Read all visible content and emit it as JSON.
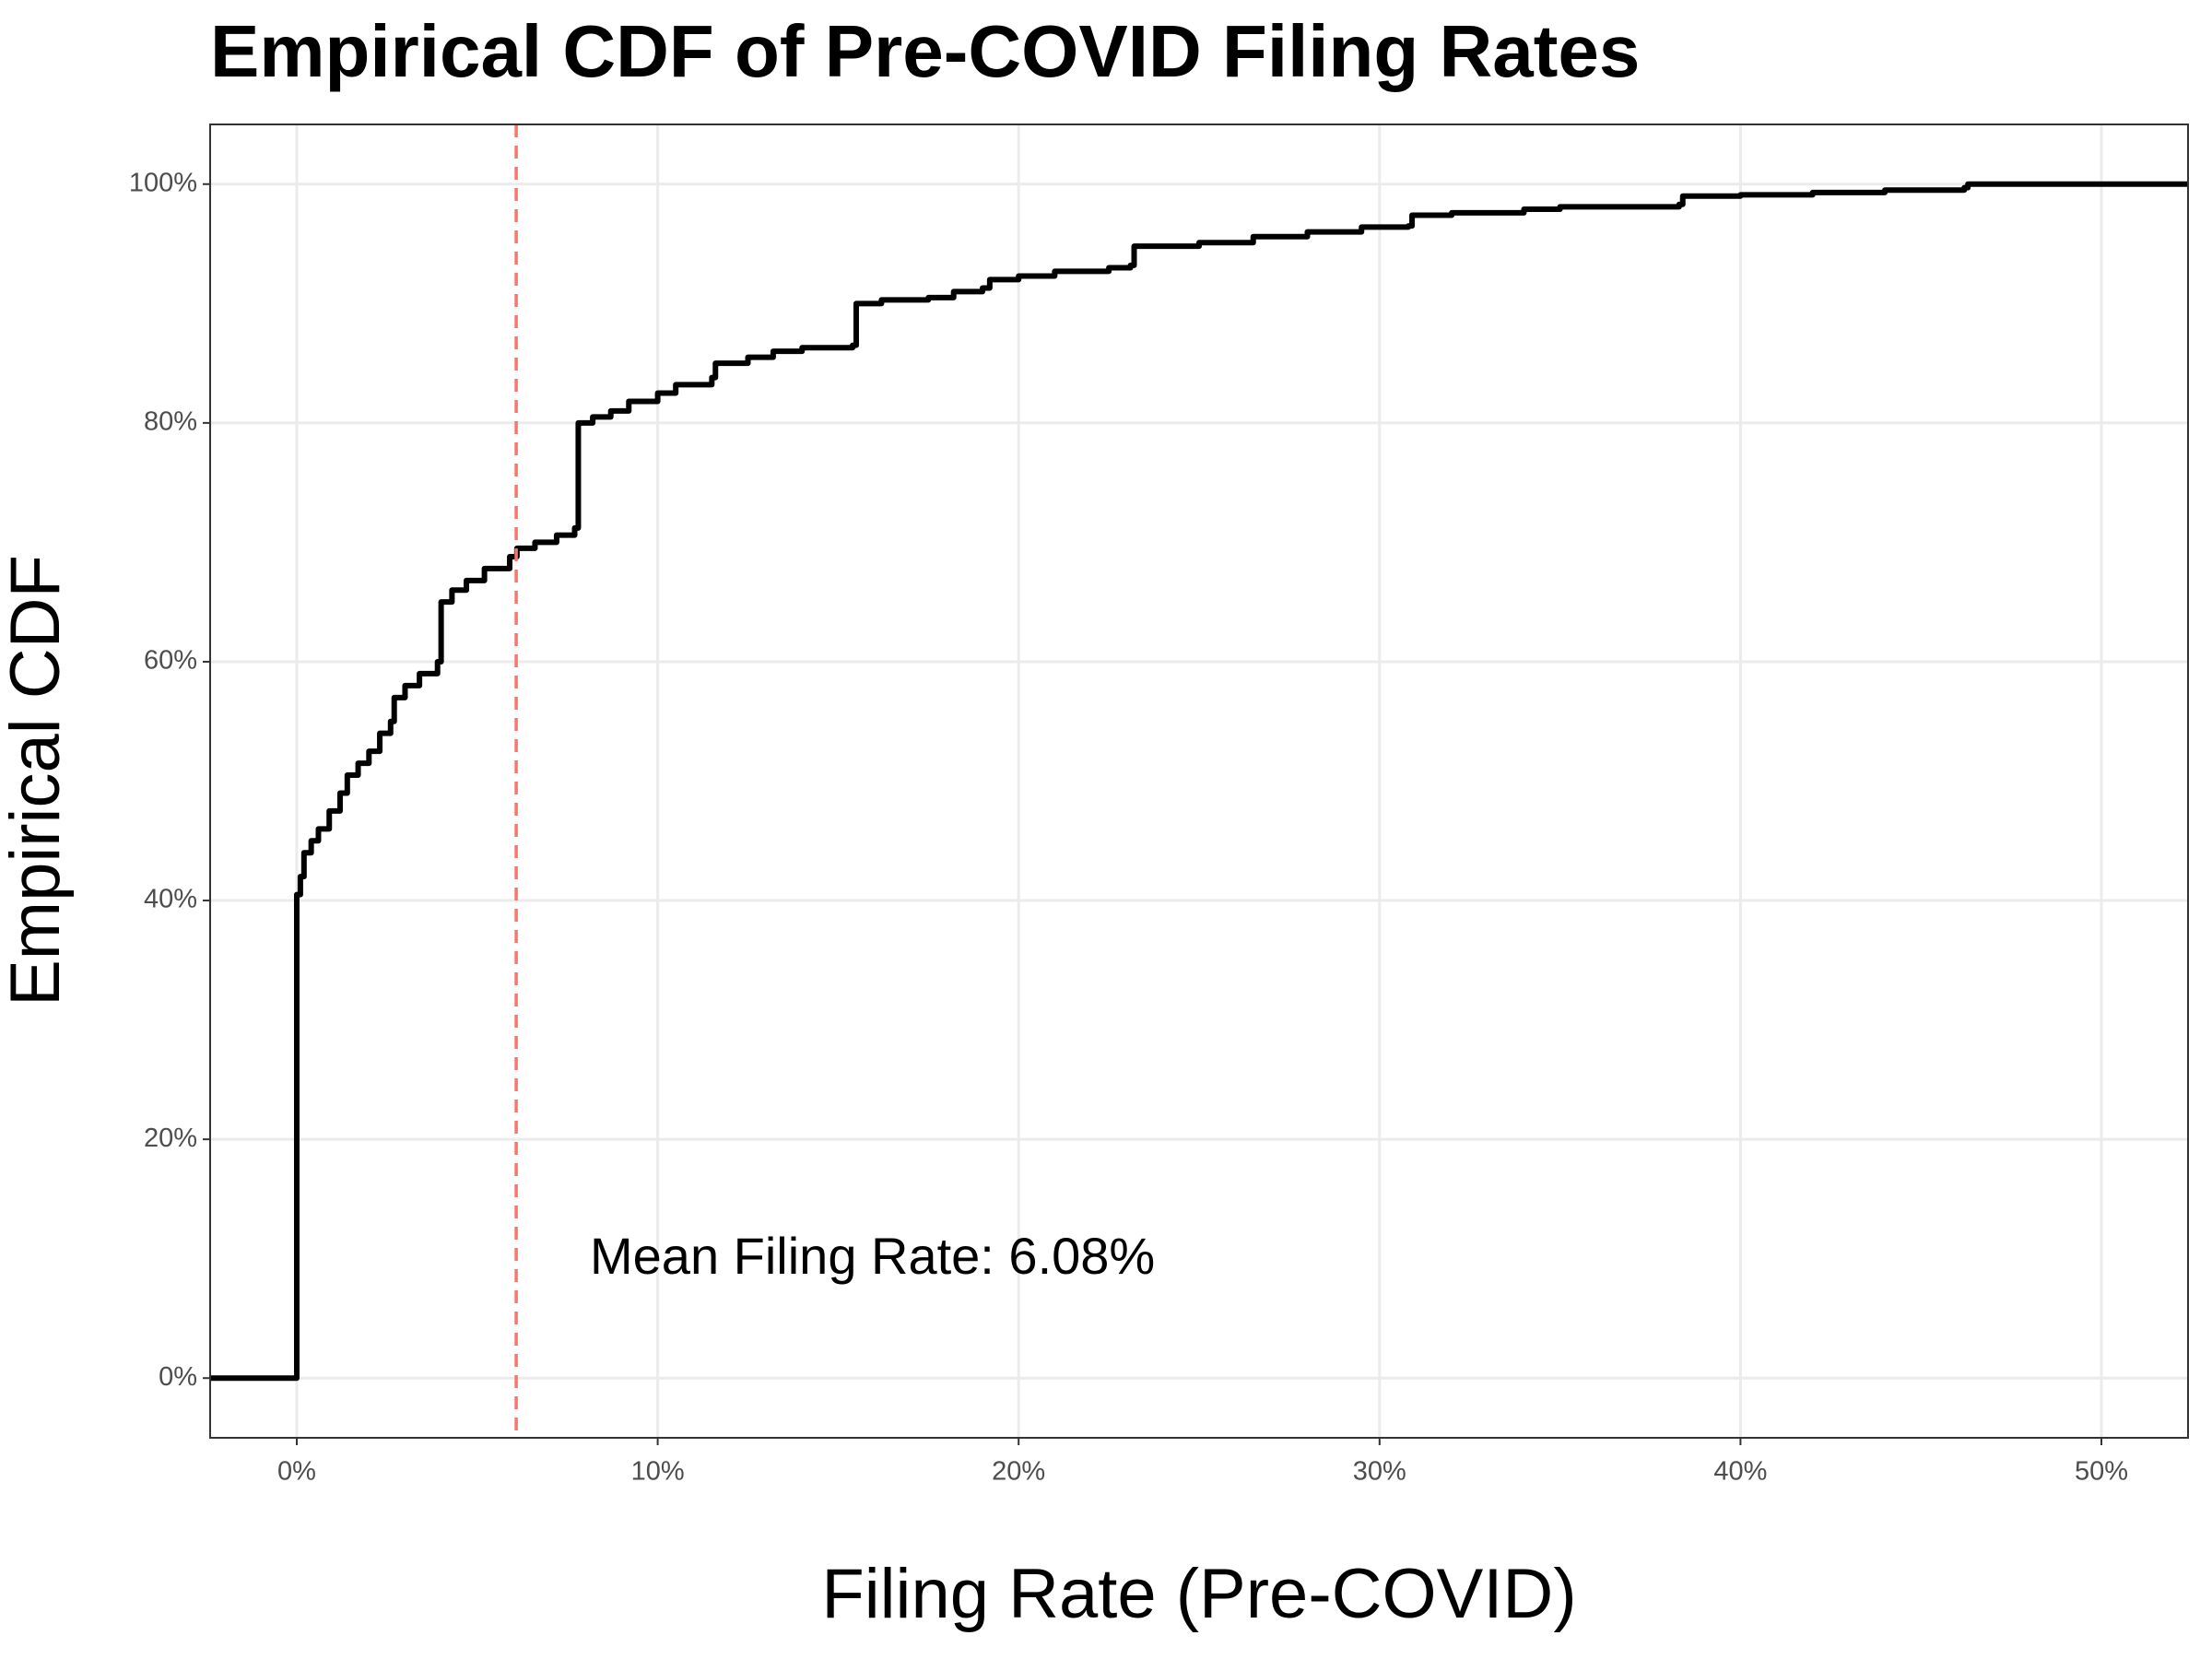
{
  "chart_data": {
    "type": "line",
    "drawstyle": "steps-post",
    "title": "Empirical CDF of Pre-COVID Filing Rates",
    "x_label": "Filing Rate (Pre-COVID)",
    "y_label": "Empirical CDF",
    "annotation": "Mean Filing Rate: 6.08%",
    "mean_line": {
      "value": 6.08,
      "color": "#f8766d"
    },
    "color": "#000000",
    "grid": true,
    "xlim": [
      -2.4,
      52.4
    ],
    "ylim": [
      -5,
      105
    ],
    "xticks": [
      {
        "value": 0,
        "label": "0%"
      },
      {
        "value": 10,
        "label": "10%"
      },
      {
        "value": 20,
        "label": "20%"
      },
      {
        "value": 30,
        "label": "30%"
      },
      {
        "value": 40,
        "label": "40%"
      },
      {
        "value": 50,
        "label": "50%"
      }
    ],
    "yticks": [
      {
        "value": 0,
        "label": "0%"
      },
      {
        "value": 20,
        "label": "20%"
      },
      {
        "value": 40,
        "label": "40%"
      },
      {
        "value": 60,
        "label": "60%"
      },
      {
        "value": 80,
        "label": "80%"
      },
      {
        "value": 100,
        "label": "100%"
      }
    ],
    "x": [
      0,
      0.1,
      0.2,
      0.4,
      0.6,
      0.9,
      1.2,
      1.4,
      1.7,
      2,
      2.3,
      2.6,
      2.7,
      3,
      3.4,
      3.9,
      4,
      4.3,
      4.7,
      5.2,
      5.9,
      6.1,
      6.6,
      7.2,
      7.7,
      7.8,
      8.2,
      8.7,
      9.2,
      10,
      10.5,
      11.5,
      11.6,
      12.5,
      13.2,
      14,
      15.4,
      15.5,
      16.2,
      17.5,
      18.2,
      19,
      19.2,
      20,
      21,
      22.5,
      23.1,
      23.2,
      25,
      26.5,
      28,
      29.5,
      30.8,
      30.9,
      32,
      34,
      35,
      38.3,
      38.4,
      40,
      42,
      44,
      46.2,
      46.3
    ],
    "y": [
      40.5,
      42,
      44,
      45,
      46,
      47.5,
      49,
      50.5,
      51.5,
      52.5,
      54,
      55,
      57,
      58,
      59,
      60,
      65,
      66,
      66.8,
      67.8,
      68.8,
      69.5,
      70,
      70.6,
      71.2,
      80,
      80.5,
      81,
      81.8,
      82.5,
      83.2,
      83.8,
      85,
      85.5,
      86,
      86.3,
      86.5,
      90,
      90.3,
      90.5,
      91,
      91.3,
      92,
      92.3,
      92.7,
      93,
      93.2,
      94.8,
      95.1,
      95.6,
      96,
      96.4,
      96.5,
      97.4,
      97.6,
      97.9,
      98.1,
      98.3,
      99,
      99.1,
      99.3,
      99.5,
      99.7,
      100
    ]
  }
}
